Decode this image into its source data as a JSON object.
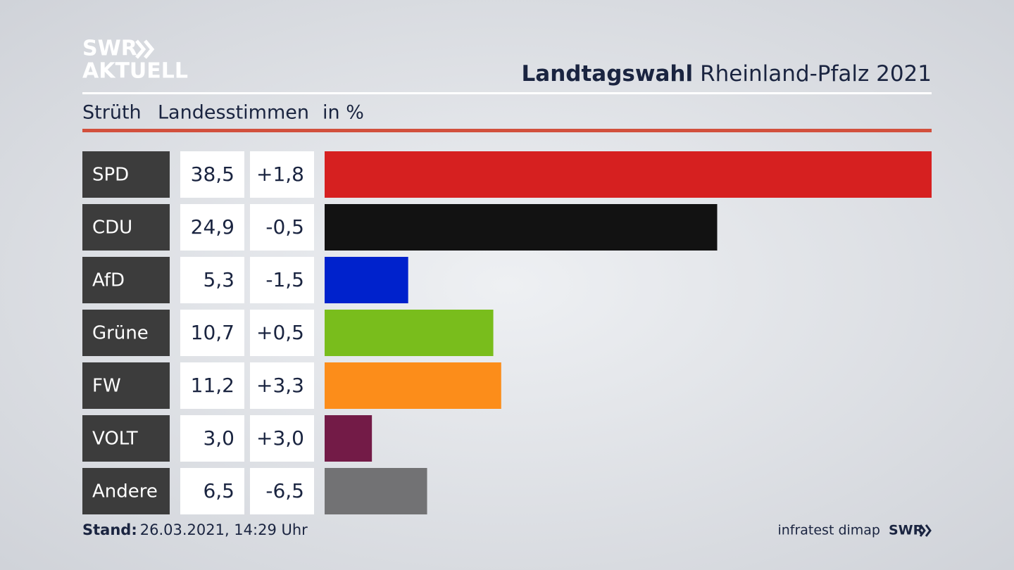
{
  "header": {
    "logo_top": "SWR",
    "logo_bottom": "AKTUELL",
    "title_bold": "Landtagswahl",
    "title_rest": "Rheinland-Pfalz 2021"
  },
  "chart_data": {
    "type": "bar",
    "orientation": "horizontal",
    "region": "Strüth",
    "subtitle": "Landesstimmen",
    "unit": "in %",
    "categories": [
      "SPD",
      "CDU",
      "AfD",
      "Grüne",
      "FW",
      "VOLT",
      "Andere"
    ],
    "values": [
      38.5,
      24.9,
      5.3,
      10.7,
      11.2,
      3.0,
      6.5
    ],
    "value_labels": [
      "38,5",
      "24,9",
      "5,3",
      "10,7",
      "11,2",
      "3,0",
      "6,5"
    ],
    "changes": [
      1.8,
      -0.5,
      -1.5,
      0.5,
      3.3,
      3.0,
      -6.5
    ],
    "change_labels": [
      "+1,8",
      "-0,5",
      "-1,5",
      "+0,5",
      "+3,3",
      "+3,0",
      "-6,5"
    ],
    "colors": [
      "#d62020",
      "#121212",
      "#0022cc",
      "#79bd1c",
      "#fc8d1a",
      "#731b47",
      "#727274"
    ]
  },
  "footer": {
    "stand_label": "Stand:",
    "stand": "26.03.2021, 14:29 Uhr",
    "source": "infratest dimap",
    "logo": "SWR"
  }
}
